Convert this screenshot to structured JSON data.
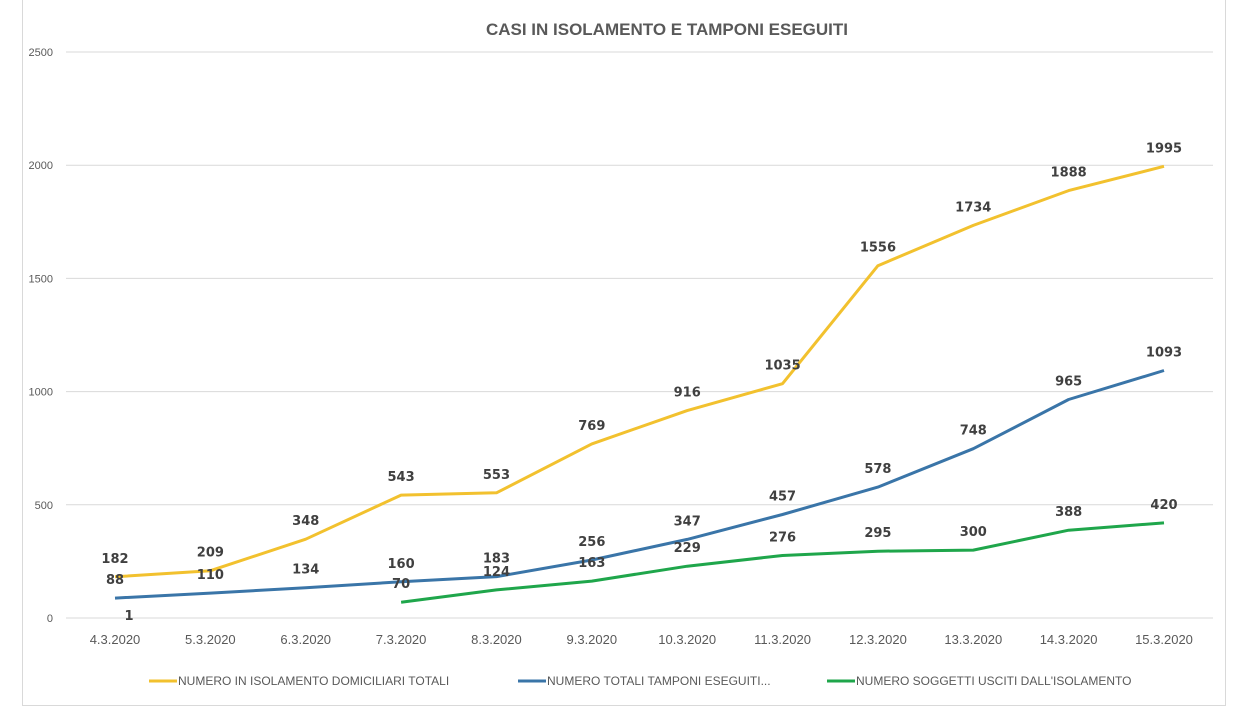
{
  "chart_data": {
    "type": "line",
    "title": "CASI IN ISOLAMENTO E TAMPONI ESEGUITI",
    "xlabel": "",
    "ylabel": "",
    "ylim": [
      0,
      2500
    ],
    "yticks": [
      0,
      500,
      1000,
      1500,
      2000,
      2500
    ],
    "grid": true,
    "legend_position": "bottom",
    "categories": [
      "4.3.2020",
      "5.3.2020",
      "6.3.2020",
      "7.3.2020",
      "8.3.2020",
      "9.3.2020",
      "10.3.2020",
      "11.3.2020",
      "12.3.2020",
      "13.3.2020",
      "14.3.2020",
      "15.3.2020"
    ],
    "series": [
      {
        "name": "NUMERO IN ISOLAMENTO DOMICILIARI TOTALI",
        "color": "#F2C12E",
        "values": [
          182,
          209,
          348,
          543,
          553,
          769,
          916,
          1035,
          1556,
          1734,
          1888,
          1995
        ]
      },
      {
        "name": "NUMERO TOTALI TAMPONI ESEGUITI...",
        "color": "#3A75A8",
        "values": [
          88,
          110,
          134,
          160,
          183,
          256,
          347,
          457,
          578,
          748,
          965,
          1093
        ]
      },
      {
        "name": "NUMERO SOGGETTI USCITI DALL'ISOLAMENTO",
        "color": "#1FA64B",
        "values": [
          1,
          null,
          null,
          70,
          124,
          163,
          229,
          276,
          295,
          300,
          388,
          420
        ]
      }
    ]
  }
}
